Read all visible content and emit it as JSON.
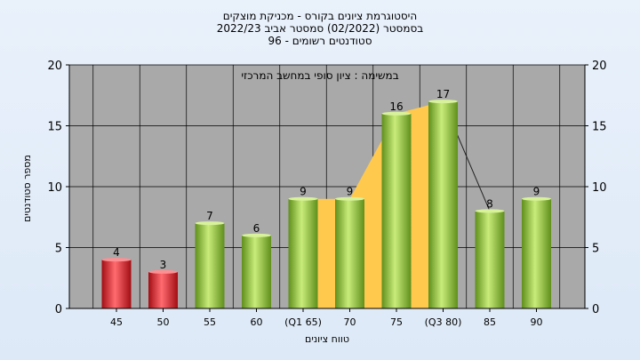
{
  "chart_data": {
    "type": "bar",
    "title_lines": [
      "היסטוגרמת ציונים בקורס - מכניקת מוצקים",
      "בסמסטר  (02/2022)  סמסטר אביב 2022/23",
      "סטודנטים רשומים - 96"
    ],
    "subtitle": "במשימה : ציון סופי במחשב המרכזי",
    "xlabel": "טווח ציונים",
    "ylabel": "מספר סטודנטים",
    "categories": [
      "45",
      "50",
      "55",
      "60",
      "(Q1 65)",
      "70",
      "75",
      "(Q3 80)",
      "85",
      "90"
    ],
    "values": [
      4,
      3,
      7,
      6,
      9,
      9,
      16,
      17,
      8,
      9
    ],
    "bar_colors": [
      "red",
      "red",
      "green",
      "green",
      "green",
      "green",
      "green",
      "green",
      "green",
      "green"
    ],
    "ylim": [
      0,
      20
    ],
    "yticks": [
      0,
      5,
      10,
      15,
      20
    ],
    "grid": true,
    "right_axis": true,
    "area_highlight": {
      "from": "(Q1 65)",
      "to": "(Q3 80)",
      "color": "#ffc94d"
    },
    "colors": {
      "plot_bg": "#a9a9a9",
      "grid": "#000000",
      "green_bar": "#8dc63f",
      "red_bar": "#e0232b"
    }
  }
}
